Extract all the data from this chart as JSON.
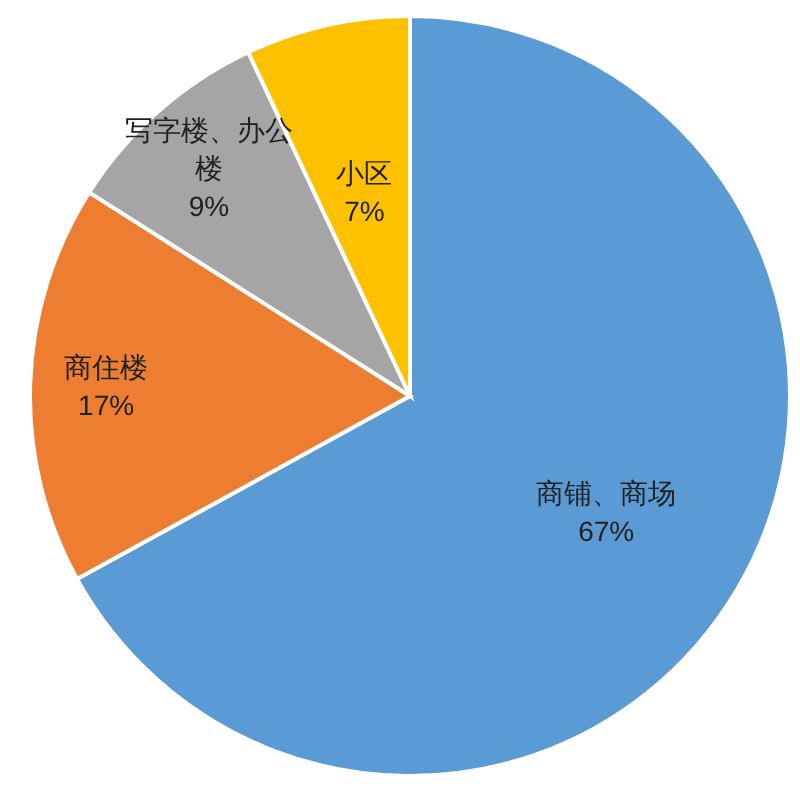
{
  "chart_data": {
    "type": "pie",
    "categories": [
      "商铺、商场",
      "商住楼",
      "写字楼、办公楼",
      "小区"
    ],
    "values": [
      67,
      17,
      9,
      7
    ],
    "colors": [
      "#5b9bd5",
      "#ed7d31",
      "#a5a5a5",
      "#ffc000"
    ],
    "value_labels": [
      "67%",
      "17%",
      "9%",
      "7%"
    ]
  }
}
